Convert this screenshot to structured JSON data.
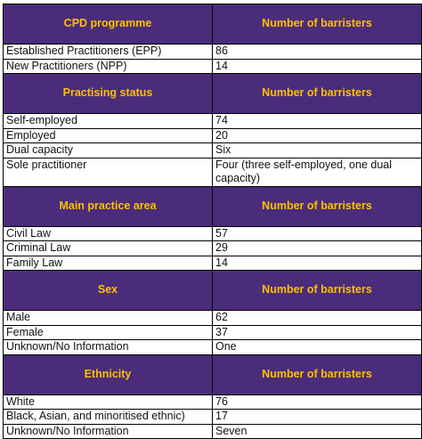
{
  "colors": {
    "header_background": "#4a2c7a",
    "header_text": "#ffc000",
    "body_text": "#111111",
    "border": "#000000"
  },
  "sections": [
    {
      "heading": "CPD programme",
      "value_heading": "Number of barristers",
      "rows": [
        {
          "label": "Established Practitioners (EPP)",
          "value": "86"
        },
        {
          "label": "New Practitioners (NPP)",
          "value": "14"
        }
      ]
    },
    {
      "heading": "Practising status",
      "value_heading": "Number of barristers",
      "rows": [
        {
          "label": "Self-employed",
          "value": "74"
        },
        {
          "label": "Employed",
          "value": "20"
        },
        {
          "label": "Dual capacity",
          "value": "Six"
        },
        {
          "label": "Sole practitioner",
          "value": "Four (three self-employed, one dual capacity)"
        }
      ]
    },
    {
      "heading": "Main practice area",
      "value_heading": "Number of barristers",
      "rows": [
        {
          "label": "Civil Law",
          "value": "57"
        },
        {
          "label": "Criminal Law",
          "value": "29"
        },
        {
          "label": "Family Law",
          "value": "14"
        }
      ]
    },
    {
      "heading": "Sex",
      "value_heading": "Number of barristers",
      "rows": [
        {
          "label": "Male",
          "value": "62"
        },
        {
          "label": "Female",
          "value": "37"
        },
        {
          "label": "Unknown/No Information",
          "value": "One"
        }
      ]
    },
    {
      "heading": "Ethnicity",
      "value_heading": "Number of barristers",
      "rows": [
        {
          "label": "White",
          "value": "76"
        },
        {
          "label": "Black, Asian, and minoritised ethnic)",
          "value": "17"
        },
        {
          "label": "Unknown/No Information",
          "value": "Seven"
        }
      ]
    }
  ]
}
